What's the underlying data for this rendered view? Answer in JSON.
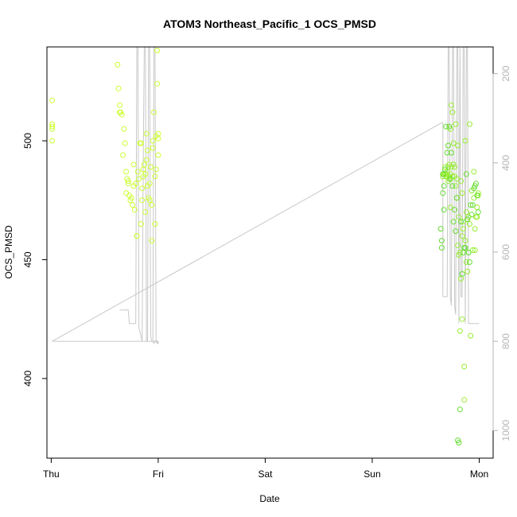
{
  "chart_data": {
    "type": "scatter",
    "title": "ATOM3 Northeast_Pacific_1 OCS_PMSD",
    "xlabel": "Date",
    "ylabel": "OCS_PMSD",
    "x_ticks": [
      "Thu",
      "Fri",
      "Sat",
      "Sun",
      "Mon"
    ],
    "xlim": [
      -0.04,
      4.13
    ],
    "ylim": [
      366.5,
      539.5
    ],
    "y_ticks": [
      400,
      450,
      500
    ],
    "y2_ticks": [
      200,
      400,
      600,
      800,
      1000
    ],
    "y2lim": [
      1062,
      140
    ],
    "point_colors": [
      "#ccff33",
      "#99ee33",
      "#66dd33"
    ],
    "line_color": "#c8c8c8",
    "grid": false,
    "legend": "none",
    "series": [
      {
        "kind": "points",
        "x": [
          0.01,
          0.01,
          0.01,
          0.01,
          0.01,
          0.62,
          0.63,
          0.64,
          0.64,
          0.65,
          0.66,
          0.67,
          0.68,
          0.69,
          0.7,
          0.7,
          0.71,
          0.72,
          0.72,
          0.73,
          0.74,
          0.75,
          0.76,
          0.77,
          0.77,
          0.78,
          0.79,
          0.8,
          0.8,
          0.81,
          0.82,
          0.83,
          0.84,
          0.84,
          0.85,
          0.85,
          0.86,
          0.86,
          0.87,
          0.88,
          0.88,
          0.89,
          0.89,
          0.9,
          0.9,
          0.91,
          0.92,
          0.92,
          0.93,
          0.94,
          0.94,
          0.95,
          0.95,
          0.96,
          0.97,
          0.97,
          0.98,
          0.98,
          0.99,
          0.99,
          1.0,
          1.0,
          1.0
        ],
        "y": [
          517,
          507,
          506,
          505,
          500,
          532,
          522,
          515,
          512,
          512,
          511,
          494,
          505,
          499,
          487,
          478,
          484,
          482,
          483,
          477,
          475,
          476,
          473,
          490,
          481,
          471,
          482,
          460,
          460,
          487,
          484,
          499,
          499,
          465,
          475,
          480,
          485,
          488,
          490,
          470,
          486,
          492,
          503,
          481,
          496,
          476,
          482,
          475,
          489,
          473,
          458,
          500,
          497,
          512,
          485,
          465,
          502,
          488,
          538,
          524,
          503,
          501,
          494
        ],
        "color_group": 0
      },
      {
        "kind": "points",
        "x": [
          3.66,
          3.67,
          3.67,
          3.68,
          3.68,
          3.69,
          3.69,
          3.7,
          3.7,
          3.71,
          3.71,
          3.72,
          3.72,
          3.72,
          3.73,
          3.73,
          3.73,
          3.74,
          3.74,
          3.75,
          3.75,
          3.76,
          3.76,
          3.77,
          3.77,
          3.78,
          3.78,
          3.79,
          3.79,
          3.8,
          3.8,
          3.81,
          3.81,
          3.82,
          3.82,
          3.83,
          3.83,
          3.84,
          3.84,
          3.84,
          3.85,
          3.85,
          3.86,
          3.86,
          3.87,
          3.87,
          3.88,
          3.88,
          3.89,
          3.89,
          3.9,
          3.9,
          3.91,
          3.91,
          3.92,
          3.93,
          3.93,
          3.94,
          3.95,
          3.95,
          3.96,
          3.96,
          3.97,
          3.98,
          3.98,
          3.99,
          3.99
        ],
        "y": [
          485,
          486,
          486,
          489,
          486,
          486,
          485,
          485,
          487,
          489,
          483,
          484,
          485,
          490,
          486,
          505,
          472,
          489,
          515,
          512,
          485,
          490,
          499,
          485,
          489,
          507,
          481,
          484,
          476,
          456,
          498,
          468,
          452,
          420,
          453,
          483,
          442,
          460,
          425,
          478,
          463,
          466,
          405,
          391,
          458,
          500,
          449,
          470,
          445,
          467,
          453,
          468,
          465,
          507,
          418,
          479,
          479,
          454,
          476,
          487,
          454,
          463,
          468,
          472,
          468,
          477,
          478
        ],
        "color_group": 1
      },
      {
        "kind": "points",
        "x": [
          3.64,
          3.65,
          3.65,
          3.66,
          3.66,
          3.67,
          3.67,
          3.68,
          3.69,
          3.7,
          3.71,
          3.72,
          3.73,
          3.74,
          3.75,
          3.76,
          3.77,
          3.78,
          3.79,
          3.8,
          3.81,
          3.82,
          3.83,
          3.84,
          3.85,
          3.86,
          3.87,
          3.88,
          3.89,
          3.9,
          3.91,
          3.92,
          3.93,
          3.94,
          3.95,
          3.96,
          3.97,
          3.98,
          3.99
        ],
        "y": [
          463,
          458,
          455,
          478,
          486,
          481,
          471,
          488,
          506,
          495,
          498,
          506,
          484,
          495,
          481,
          466,
          471,
          462,
          476,
          374,
          373,
          387,
          466,
          444,
          453,
          455,
          455,
          486,
          467,
          453,
          449,
          473,
          469,
          473,
          480,
          481,
          482,
          477,
          470
        ],
        "color_group": 2
      },
      {
        "kind": "line",
        "axis": "right",
        "x": [
          0.01,
          1.0,
          1.0,
          0.99,
          0.98,
          0.97,
          0.96,
          0.95,
          0.94,
          0.93,
          0.92,
          0.91,
          0.9,
          0.89,
          0.88,
          0.87,
          0.86,
          0.85,
          0.84,
          0.83,
          0.82,
          0.81,
          0.8,
          0.79,
          0.78,
          0.77,
          0.76,
          0.75,
          0.74,
          0.73,
          0.72,
          0.71,
          0.7,
          0.69,
          0.68,
          0.67,
          0.66,
          0.65,
          0.64,
          0.63,
          0.62,
          0.61,
          0.6,
          0.59,
          0.58,
          0.57,
          0.56,
          0.55,
          0.54,
          0.53,
          0.52,
          0.51,
          0.5,
          0.49,
          0.48,
          0.47,
          0.46,
          0.45,
          0.44,
          0.43,
          0.42,
          0.41,
          0.4,
          0.39,
          0.38,
          0.37,
          0.36,
          0.35,
          0.34,
          0.33,
          0.32,
          0.31,
          0.3,
          0.29,
          0.28,
          0.27,
          0.26,
          0.25,
          0.24,
          0.23,
          0.22,
          0.21,
          0.2,
          0.19,
          0.18,
          0.17,
          0.16,
          0.15,
          0.14,
          0.13,
          0.12,
          0.11,
          0.1,
          0.09,
          0.08,
          0.07,
          0.06,
          0.05,
          0.04,
          0.03,
          0.02,
          0.01
        ],
        "y": [
          800,
          800,
          805,
          800,
          798,
          800,
          805,
          800,
          800,
          800,
          800,
          800,
          800,
          800,
          800,
          800,
          800,
          800,
          800,
          800,
          800,
          800,
          800,
          800,
          800,
          800,
          800,
          800,
          800,
          800,
          800,
          800,
          800,
          800,
          800,
          800,
          800,
          800,
          800,
          800,
          800,
          800,
          800,
          800,
          800,
          800,
          800,
          800,
          800,
          800,
          800,
          800,
          800,
          800,
          800,
          800,
          800,
          800,
          800,
          800,
          800,
          800,
          800,
          800,
          800,
          800,
          800,
          800,
          800,
          800,
          800,
          800,
          800,
          800,
          800,
          800,
          800,
          800,
          800,
          800,
          800,
          800,
          800,
          800,
          800,
          800,
          800,
          800,
          800,
          800,
          800,
          800,
          800,
          800,
          800,
          800,
          800,
          800,
          800,
          800,
          800,
          800
        ]
      },
      {
        "kind": "line",
        "axis": "right",
        "x": [
          0.64,
          0.72,
          0.73,
          0.76,
          0.79,
          0.8,
          0.81,
          0.82,
          0.84,
          0.85,
          0.86,
          0.87,
          0.88,
          0.89,
          0.9,
          0.91,
          0.92,
          0.93,
          0.94,
          0.95,
          0.96,
          0.97,
          0.98,
          0.99,
          1.0
        ],
        "y": [
          730,
          730,
          760,
          760,
          760,
          140,
          140,
          770,
          790,
          800,
          400,
          140,
          140,
          800,
          800,
          140,
          140,
          790,
          800,
          800,
          140,
          140,
          800,
          805,
          800
        ]
      },
      {
        "kind": "line",
        "axis": "right",
        "x": [
          0.01,
          3.65,
          3.66,
          3.66,
          3.7,
          3.71,
          3.72,
          3.73,
          3.74,
          3.75,
          3.76,
          3.77,
          3.78,
          3.79,
          3.8,
          3.81,
          3.82,
          3.83,
          3.84,
          3.85,
          3.86,
          3.87,
          3.88,
          3.89,
          3.9,
          3.91,
          3.92,
          3.93,
          3.94,
          3.95,
          3.96,
          3.97,
          3.98,
          3.99,
          4.0
        ],
        "y": [
          800,
          310,
          310,
          700,
          700,
          140,
          140,
          700,
          720,
          140,
          140,
          720,
          740,
          140,
          140,
          760,
          140,
          700,
          700,
          140,
          140,
          760,
          140,
          140,
          760,
          760,
          760,
          760,
          760,
          760,
          760,
          760,
          760,
          760,
          760
        ]
      }
    ]
  }
}
